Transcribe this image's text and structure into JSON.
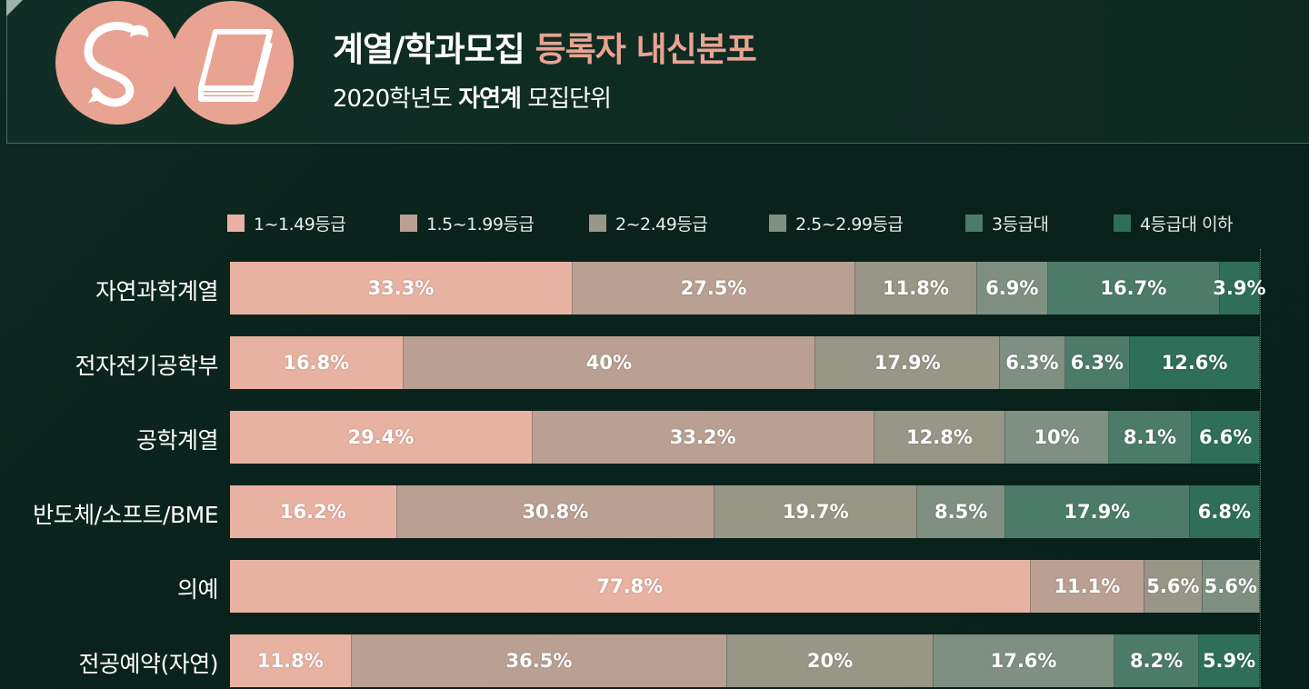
{
  "header": {
    "title_main": "계열/학과모집",
    "title_accent": "등록자 내신분포",
    "subtitle_pre": "2020학년도",
    "subtitle_bold": "자연계",
    "subtitle_post": "모집단위"
  },
  "colors": {
    "accent": "#e8a393",
    "series": [
      "#e8b2a2",
      "#b9a092",
      "#989687",
      "#7f9083",
      "#4d7b69",
      "#2f6e58"
    ]
  },
  "chart_data": {
    "type": "bar",
    "orientation": "horizontal",
    "stacked": true,
    "percent": true,
    "xlim": [
      0,
      100
    ],
    "legend_position": "top",
    "categories": [
      "자연과학계열",
      "전자전기공학부",
      "공학계열",
      "반도체/소프트/BME",
      "의예",
      "전공예약(자연)"
    ],
    "series": [
      {
        "name": "1~1.49등급",
        "values": [
          33.3,
          16.8,
          29.4,
          16.2,
          77.8,
          11.8
        ],
        "labels": [
          "33.3%",
          "16.8%",
          "29.4%",
          "16.2%",
          "77.8%",
          "11.8%"
        ]
      },
      {
        "name": "1.5~1.99등급",
        "values": [
          27.5,
          40,
          33.2,
          30.8,
          11.1,
          36.5
        ],
        "labels": [
          "27.5%",
          "40%",
          "33.2%",
          "30.8%",
          "11.1%",
          "36.5%"
        ]
      },
      {
        "name": "2~2.49등급",
        "values": [
          11.8,
          17.9,
          12.8,
          19.7,
          5.6,
          20
        ],
        "labels": [
          "11.8%",
          "17.9%",
          "12.8%",
          "19.7%",
          "5.6%",
          "20%"
        ]
      },
      {
        "name": "2.5~2.99등급",
        "values": [
          6.9,
          6.3,
          10,
          8.5,
          5.6,
          17.6
        ],
        "labels": [
          "6.9%",
          "6.3%",
          "10%",
          "8.5%",
          "5.6%",
          "17.6%"
        ]
      },
      {
        "name": "3등급대",
        "values": [
          16.7,
          6.3,
          8.1,
          17.9,
          0,
          8.2
        ],
        "labels": [
          "16.7%",
          "6.3%",
          "8.1%",
          "17.9%",
          "",
          "8.2%"
        ]
      },
      {
        "name": "4등급대 이하",
        "values": [
          3.9,
          12.6,
          6.6,
          6.8,
          0,
          5.9
        ],
        "labels": [
          "3.9%",
          "12.6%",
          "6.6%",
          "6.8%",
          "",
          "5.9%"
        ]
      }
    ]
  }
}
